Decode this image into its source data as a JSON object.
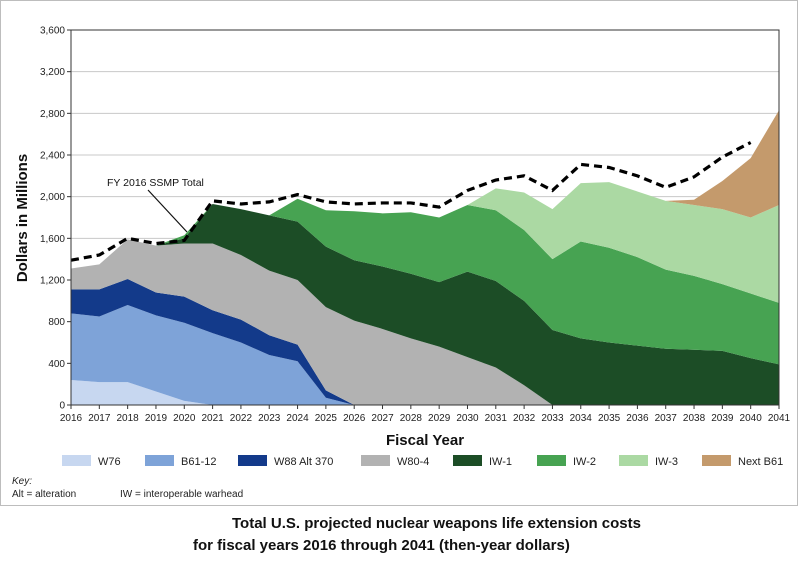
{
  "chart_data": {
    "type": "area",
    "stacked": true,
    "x": [
      "2016",
      "2017",
      "2018",
      "2019",
      "2020",
      "2021",
      "2022",
      "2023",
      "2024",
      "2025",
      "2026",
      "2027",
      "2028",
      "2029",
      "2030",
      "2031",
      "2032",
      "2033",
      "2034",
      "2035",
      "2036",
      "2037",
      "2038",
      "2039",
      "2040",
      "2041"
    ],
    "xlabel": "Fiscal Year",
    "ylabel": "Dollars in Millions",
    "ylim": [
      0,
      3600
    ],
    "yticks": [
      "0",
      "400",
      "800",
      "1,200",
      "1,600",
      "2,000",
      "2,400",
      "2,800",
      "3,200",
      "3,600"
    ],
    "grid": "horizontal",
    "series": [
      {
        "name": "W76",
        "color": "#c7d7f0",
        "values": [
          240,
          220,
          220,
          130,
          40,
          0,
          0,
          0,
          0,
          0,
          0,
          0,
          0,
          0,
          0,
          0,
          0,
          0,
          0,
          0,
          0,
          0,
          0,
          0,
          0,
          0
        ]
      },
      {
        "name": "B61-12",
        "color": "#7ea3d8",
        "values": [
          640,
          630,
          740,
          730,
          750,
          690,
          600,
          480,
          420,
          70,
          0,
          0,
          0,
          0,
          0,
          0,
          0,
          0,
          0,
          0,
          0,
          0,
          0,
          0,
          0,
          0
        ]
      },
      {
        "name": "W88 Alt 370",
        "color": "#133a8a",
        "values": [
          230,
          260,
          250,
          220,
          250,
          220,
          220,
          190,
          160,
          70,
          0,
          0,
          0,
          0,
          0,
          0,
          0,
          0,
          0,
          0,
          0,
          0,
          0,
          0,
          0,
          0
        ]
      },
      {
        "name": "W80-4",
        "color": "#b2b2b2",
        "values": [
          200,
          240,
          380,
          450,
          510,
          640,
          620,
          620,
          620,
          800,
          810,
          730,
          640,
          560,
          460,
          360,
          190,
          0,
          0,
          0,
          0,
          0,
          0,
          0,
          0,
          0
        ]
      },
      {
        "name": "IW-1",
        "color": "#1c4d26",
        "values": [
          0,
          0,
          0,
          0,
          50,
          380,
          440,
          530,
          560,
          580,
          580,
          600,
          620,
          620,
          820,
          830,
          810,
          720,
          640,
          600,
          570,
          540,
          530,
          520,
          450,
          390
        ]
      },
      {
        "name": "IW-2",
        "color": "#47a352",
        "values": [
          0,
          0,
          0,
          0,
          30,
          0,
          0,
          0,
          220,
          350,
          470,
          510,
          590,
          620,
          640,
          680,
          680,
          680,
          930,
          910,
          850,
          760,
          710,
          640,
          620,
          590
        ]
      },
      {
        "name": "IW-3",
        "color": "#abd9a3",
        "values": [
          0,
          0,
          0,
          0,
          0,
          0,
          0,
          0,
          0,
          0,
          0,
          0,
          0,
          0,
          0,
          210,
          360,
          480,
          560,
          630,
          630,
          660,
          680,
          720,
          730,
          940
        ]
      },
      {
        "name": "Next B61",
        "color": "#c49a6c",
        "values": [
          0,
          0,
          0,
          0,
          0,
          0,
          0,
          0,
          0,
          0,
          0,
          0,
          0,
          0,
          0,
          0,
          0,
          0,
          0,
          0,
          0,
          0,
          50,
          270,
          570,
          910
        ]
      }
    ],
    "total_line": {
      "name": "FY 2016 SSMP Total",
      "values": [
        1390,
        1440,
        1600,
        1550,
        1580,
        1960,
        1930,
        1950,
        2020,
        1950,
        1930,
        1940,
        1940,
        1900,
        2060,
        2160,
        2200,
        2060,
        2310,
        2280,
        2200,
        2090,
        2190,
        2380,
        2520,
        null
      ]
    },
    "annotation": "FY 2016 SSMP Total"
  },
  "key": {
    "title": "Key:",
    "items": [
      "Alt = alteration",
      "IW = interoperable warhead"
    ]
  },
  "caption": {
    "line1": "Total U.S. projected nuclear weapons life extension costs",
    "line2": "for fiscal years 2016 through 2041 (then-year dollars)"
  }
}
